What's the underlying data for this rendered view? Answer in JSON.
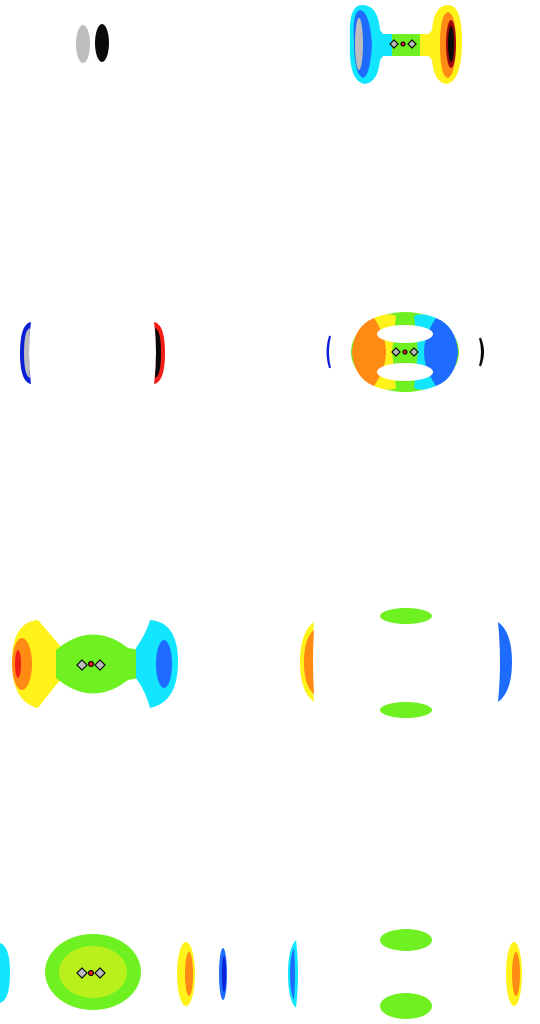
{
  "colors": {
    "deep_blue": "#0a1fd6",
    "blue": "#1e6bff",
    "light_blue": "#2aa8ff",
    "cyan": "#12e6ff",
    "green": "#6ff020",
    "lime": "#b8f01c",
    "yellow": "#fff21a",
    "orange": "#ff8a14",
    "red": "#f01e14",
    "dark_red": "#9a0a0a",
    "gray": "#bdbdbd",
    "black": "#0a0a0a"
  },
  "panels": [
    {
      "name": "panel-1",
      "description_icon": "two-lobes-gray-black"
    },
    {
      "name": "panel-2",
      "description_icon": "dumbbell-isosurface"
    },
    {
      "name": "panel-3",
      "description_icon": "thin-edge-lobes"
    },
    {
      "name": "panel-4",
      "description_icon": "ring-isosurface"
    },
    {
      "name": "panel-5",
      "description_icon": "bridged-lobes"
    },
    {
      "name": "panel-6",
      "description_icon": "separated-lobes"
    },
    {
      "name": "panel-7",
      "description_icon": "oval-with-side-lobes"
    },
    {
      "name": "panel-8",
      "description_icon": "split-lobes"
    }
  ]
}
